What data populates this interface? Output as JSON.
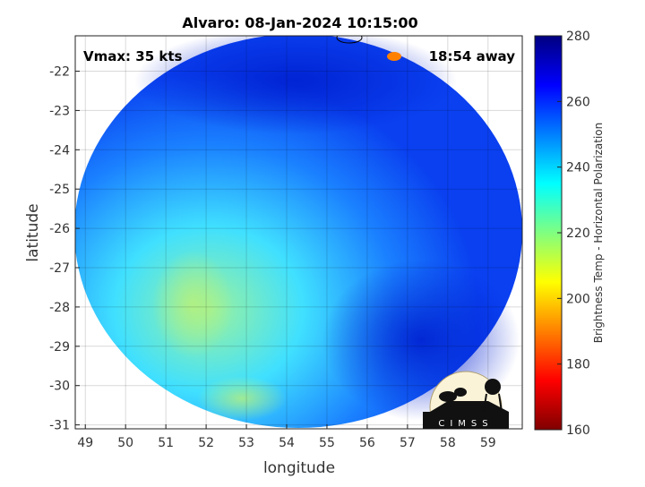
{
  "chart_data": {
    "type": "heatmap",
    "title": "Alvaro: 08-Jan-2024 10:15:00",
    "xlabel": "longitude",
    "ylabel": "latitude",
    "xlim": [
      48.75,
      59.85
    ],
    "ylim": [
      -31.1,
      -21.1
    ],
    "x_ticks": [
      "49",
      "50",
      "51",
      "52",
      "53",
      "54",
      "55",
      "56",
      "57",
      "58",
      "59"
    ],
    "y_ticks": [
      "-22",
      "-23",
      "-24",
      "-25",
      "-26",
      "-27",
      "-28",
      "-29",
      "-30",
      "-31"
    ],
    "grid": true,
    "colormap": "jet",
    "colorbar": {
      "label": "Brightness Temp - Horizontal Polarization",
      "range": [
        160,
        280
      ],
      "ticks": [
        "280",
        "260",
        "240",
        "220",
        "200",
        "180",
        "160"
      ]
    },
    "annotations": {
      "vmax": "Vmax: 35 kts",
      "away": "18:54 away"
    },
    "logo": "CIMSS"
  }
}
